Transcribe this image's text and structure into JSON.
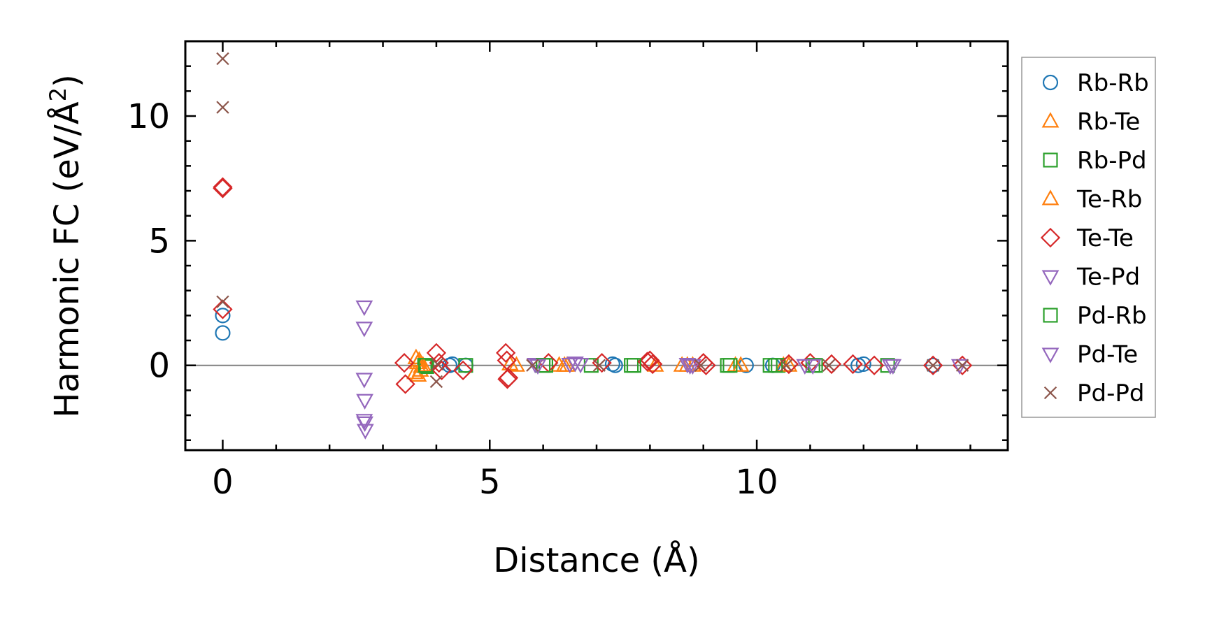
{
  "chart_data": {
    "type": "scatter",
    "title": "",
    "xlabel": "Distance (Å)",
    "ylabel_main": "Harmonic FC (eV/Å",
    "ylabel_sup": "2",
    "ylabel_close": ")",
    "xlim": [
      -0.7,
      14.7
    ],
    "ylim": [
      -3.4,
      13.0
    ],
    "xticks": [
      0,
      5,
      10
    ],
    "yticks": [
      0,
      5,
      10
    ],
    "xtick_labels": [
      "0",
      "5",
      "10"
    ],
    "ytick_labels": [
      "0",
      "5",
      "10"
    ],
    "x_minor_step": 1,
    "y_minor_step": 1,
    "grid": false,
    "zero_line": true,
    "legend_position": "outside-right",
    "series": [
      {
        "name": "Rb-Rb",
        "marker": "circle",
        "color": "#1f77b4",
        "points": [
          [
            0,
            2.0
          ],
          [
            0,
            1.3
          ],
          [
            4.25,
            0.0
          ],
          [
            4.3,
            0.05
          ],
          [
            4.55,
            0.0
          ],
          [
            7.3,
            0.05
          ],
          [
            7.35,
            0.0
          ],
          [
            9.8,
            0.0
          ],
          [
            10.3,
            0.0
          ],
          [
            11.9,
            0.0
          ],
          [
            12.0,
            0.05
          ],
          [
            13.3,
            0.0
          ]
        ]
      },
      {
        "name": "Rb-Te",
        "marker": "triangle-up",
        "color": "#ff7f0e",
        "points": [
          [
            3.62,
            0.3
          ],
          [
            3.65,
            0.1
          ],
          [
            3.66,
            -0.4
          ],
          [
            3.7,
            -0.2
          ],
          [
            3.72,
            -0.05
          ],
          [
            5.38,
            0.05
          ],
          [
            6.3,
            0.0
          ],
          [
            6.45,
            0.0
          ],
          [
            8.6,
            0.0
          ],
          [
            8.7,
            0.0
          ],
          [
            9.6,
            0.0
          ],
          [
            10.5,
            0.0
          ]
        ]
      },
      {
        "name": "Rb-Pd",
        "marker": "square",
        "color": "#2ca02c",
        "points": [
          [
            3.78,
            0.0
          ],
          [
            3.82,
            -0.05
          ],
          [
            4.55,
            0.0
          ],
          [
            6.05,
            0.0
          ],
          [
            6.9,
            0.0
          ],
          [
            7.65,
            0.0
          ],
          [
            9.45,
            0.0
          ],
          [
            10.25,
            0.0
          ],
          [
            10.4,
            0.0
          ],
          [
            11.05,
            0.0
          ],
          [
            12.45,
            0.0
          ]
        ]
      },
      {
        "name": "Te-Rb",
        "marker": "triangle-up",
        "color": "#ff7f0e",
        "points": [
          [
            3.6,
            -0.3
          ],
          [
            3.68,
            0.2
          ],
          [
            3.75,
            0.0
          ],
          [
            5.5,
            0.0
          ],
          [
            6.4,
            0.0
          ],
          [
            8.1,
            0.0
          ],
          [
            8.8,
            0.0
          ],
          [
            9.7,
            0.0
          ],
          [
            10.6,
            0.0
          ]
        ]
      },
      {
        "name": "Te-Te",
        "marker": "diamond",
        "color": "#d62728",
        "points": [
          [
            0,
            7.15
          ],
          [
            0,
            7.1
          ],
          [
            0,
            2.25
          ],
          [
            3.4,
            0.1
          ],
          [
            3.42,
            -0.75
          ],
          [
            4.0,
            0.5
          ],
          [
            4.05,
            0.1
          ],
          [
            4.1,
            -0.2
          ],
          [
            4.5,
            -0.2
          ],
          [
            5.3,
            0.5
          ],
          [
            5.32,
            0.2
          ],
          [
            5.35,
            -0.5
          ],
          [
            5.33,
            -0.55
          ],
          [
            6.1,
            0.1
          ],
          [
            7.1,
            0.1
          ],
          [
            7.95,
            0.15
          ],
          [
            8.0,
            0.2
          ],
          [
            8.05,
            0.05
          ],
          [
            9.0,
            0.1
          ],
          [
            9.05,
            0.0
          ],
          [
            10.6,
            0.05
          ],
          [
            11.0,
            0.1
          ],
          [
            11.4,
            0.05
          ],
          [
            11.8,
            0.05
          ],
          [
            12.2,
            0.0
          ],
          [
            13.3,
            0.0
          ],
          [
            13.85,
            0.0
          ]
        ]
      },
      {
        "name": "Te-Pd",
        "marker": "triangle-down",
        "color": "#9467bd",
        "points": [
          [
            2.65,
            2.35
          ],
          [
            2.65,
            1.5
          ],
          [
            2.65,
            -0.55
          ],
          [
            2.66,
            -1.4
          ],
          [
            2.66,
            -2.3
          ],
          [
            2.67,
            -2.6
          ],
          [
            5.85,
            0.05
          ],
          [
            6.6,
            0.1
          ],
          [
            6.7,
            0.05
          ],
          [
            8.7,
            0.05
          ],
          [
            8.8,
            0.0
          ],
          [
            10.9,
            0.0
          ],
          [
            12.5,
            0.0
          ],
          [
            13.8,
            0.0
          ]
        ]
      },
      {
        "name": "Pd-Rb",
        "marker": "square",
        "color": "#2ca02c",
        "points": [
          [
            3.8,
            0.0
          ],
          [
            6.0,
            0.0
          ],
          [
            7.7,
            0.0
          ],
          [
            9.5,
            0.0
          ],
          [
            10.35,
            0.0
          ],
          [
            11.1,
            0.0
          ]
        ]
      },
      {
        "name": "Pd-Te",
        "marker": "triangle-down",
        "color": "#9467bd",
        "points": [
          [
            2.65,
            -2.2
          ],
          [
            5.9,
            0.0
          ],
          [
            6.5,
            0.05
          ],
          [
            8.75,
            0.0
          ],
          [
            11.05,
            0.0
          ],
          [
            12.55,
            0.0
          ]
        ]
      },
      {
        "name": "Pd-Pd",
        "marker": "cross",
        "color": "#8c564b",
        "points": [
          [
            0,
            12.3
          ],
          [
            0,
            10.35
          ],
          [
            0,
            2.55
          ],
          [
            4.0,
            -0.65
          ],
          [
            4.02,
            0.05
          ],
          [
            5.8,
            0.0
          ],
          [
            7.05,
            0.0
          ],
          [
            8.95,
            0.0
          ],
          [
            10.55,
            0.0
          ],
          [
            11.35,
            0.0
          ],
          [
            13.3,
            0.0
          ],
          [
            13.85,
            0.0
          ]
        ]
      }
    ]
  }
}
